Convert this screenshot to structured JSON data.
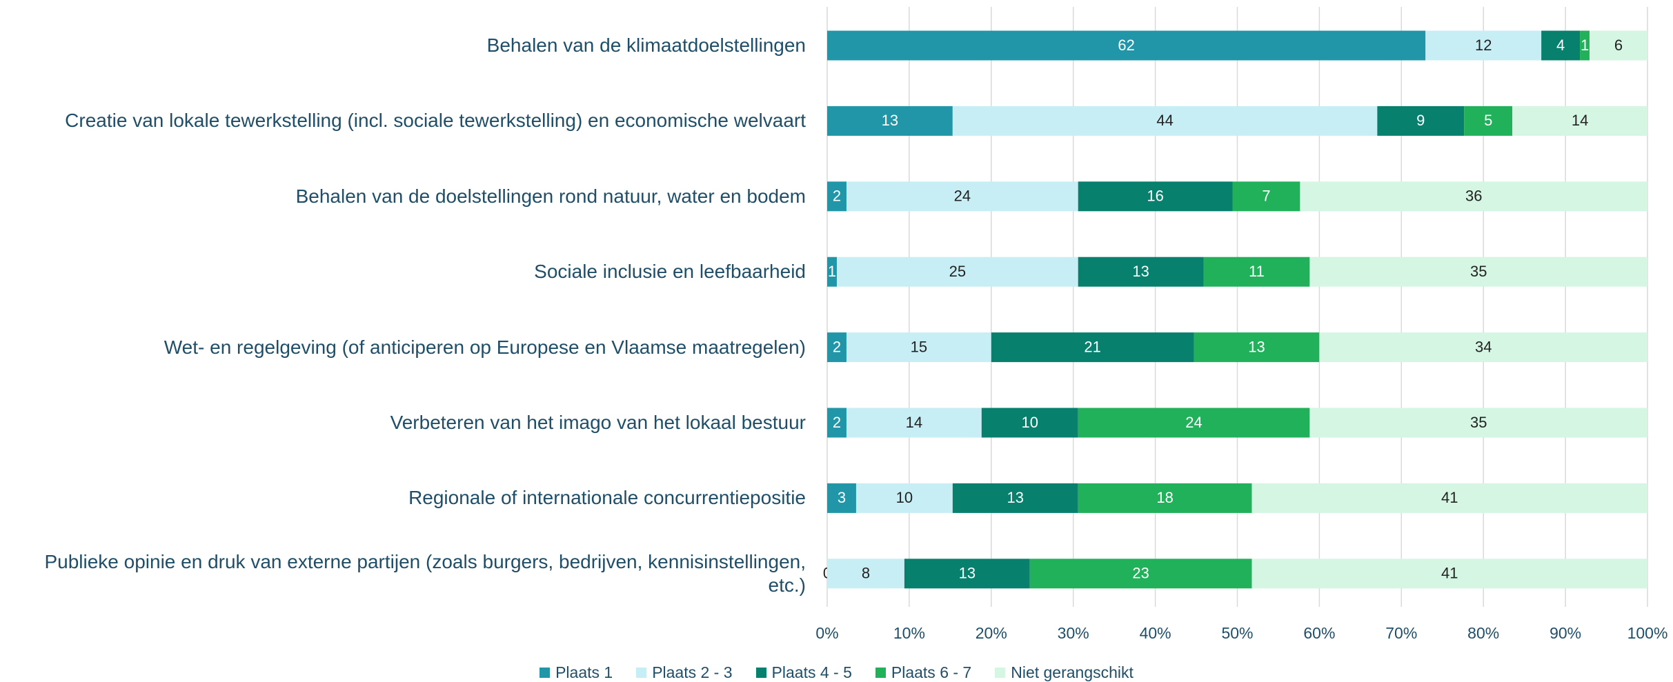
{
  "chart_data": {
    "type": "stacked_bar_100",
    "orientation": "horizontal",
    "categories": [
      "Behalen van de klimaatdoelstellingen",
      "Creatie van lokale tewerkstelling (incl. sociale tewerkstelling) en economische welvaart",
      "Behalen van de doelstellingen rond natuur, water en bodem",
      "Sociale inclusie en leefbaarheid",
      "Wet- en regelgeving (of anticiperen op Europese en Vlaamse maatregelen)",
      "Verbeteren van het imago van het lokaal bestuur",
      "Regionale of internationale concurrentiepositie",
      "Publieke opinie en druk van externe partijen (zoals burgers, bedrijven, kennisinstellingen, etc.)"
    ],
    "series": [
      {
        "name": "Plaats 1",
        "color": "#2196a8",
        "values": [
          62,
          13,
          2,
          1,
          2,
          2,
          3,
          0
        ]
      },
      {
        "name": "Plaats 2 - 3",
        "color": "#c8eef5",
        "values": [
          12,
          44,
          24,
          25,
          15,
          14,
          10,
          8
        ]
      },
      {
        "name": "Plaats 4 - 5",
        "color": "#07806e",
        "values": [
          4,
          9,
          16,
          13,
          21,
          10,
          13,
          13
        ]
      },
      {
        "name": "Plaats 6 - 7",
        "color": "#20b15a",
        "values": [
          1,
          5,
          7,
          11,
          13,
          24,
          18,
          23
        ]
      },
      {
        "name": "Niet gerangschikt",
        "color": "#d5f6e3",
        "values": [
          6,
          14,
          36,
          35,
          34,
          35,
          41,
          41
        ]
      }
    ],
    "xlim": [
      0,
      100
    ],
    "xticks": [
      {
        "value": 0,
        "label": "0%"
      },
      {
        "value": 10,
        "label": "10%"
      },
      {
        "value": 20,
        "label": "20%"
      },
      {
        "value": 30,
        "label": "30%"
      },
      {
        "value": 40,
        "label": "40%"
      },
      {
        "value": 50,
        "label": "50%"
      },
      {
        "value": 60,
        "label": "60%"
      },
      {
        "value": 70,
        "label": "70%"
      },
      {
        "value": 80,
        "label": "80%"
      },
      {
        "value": 90,
        "label": "90%"
      },
      {
        "value": 100,
        "label": "100%"
      }
    ],
    "grid": true,
    "legend": "bottom"
  }
}
